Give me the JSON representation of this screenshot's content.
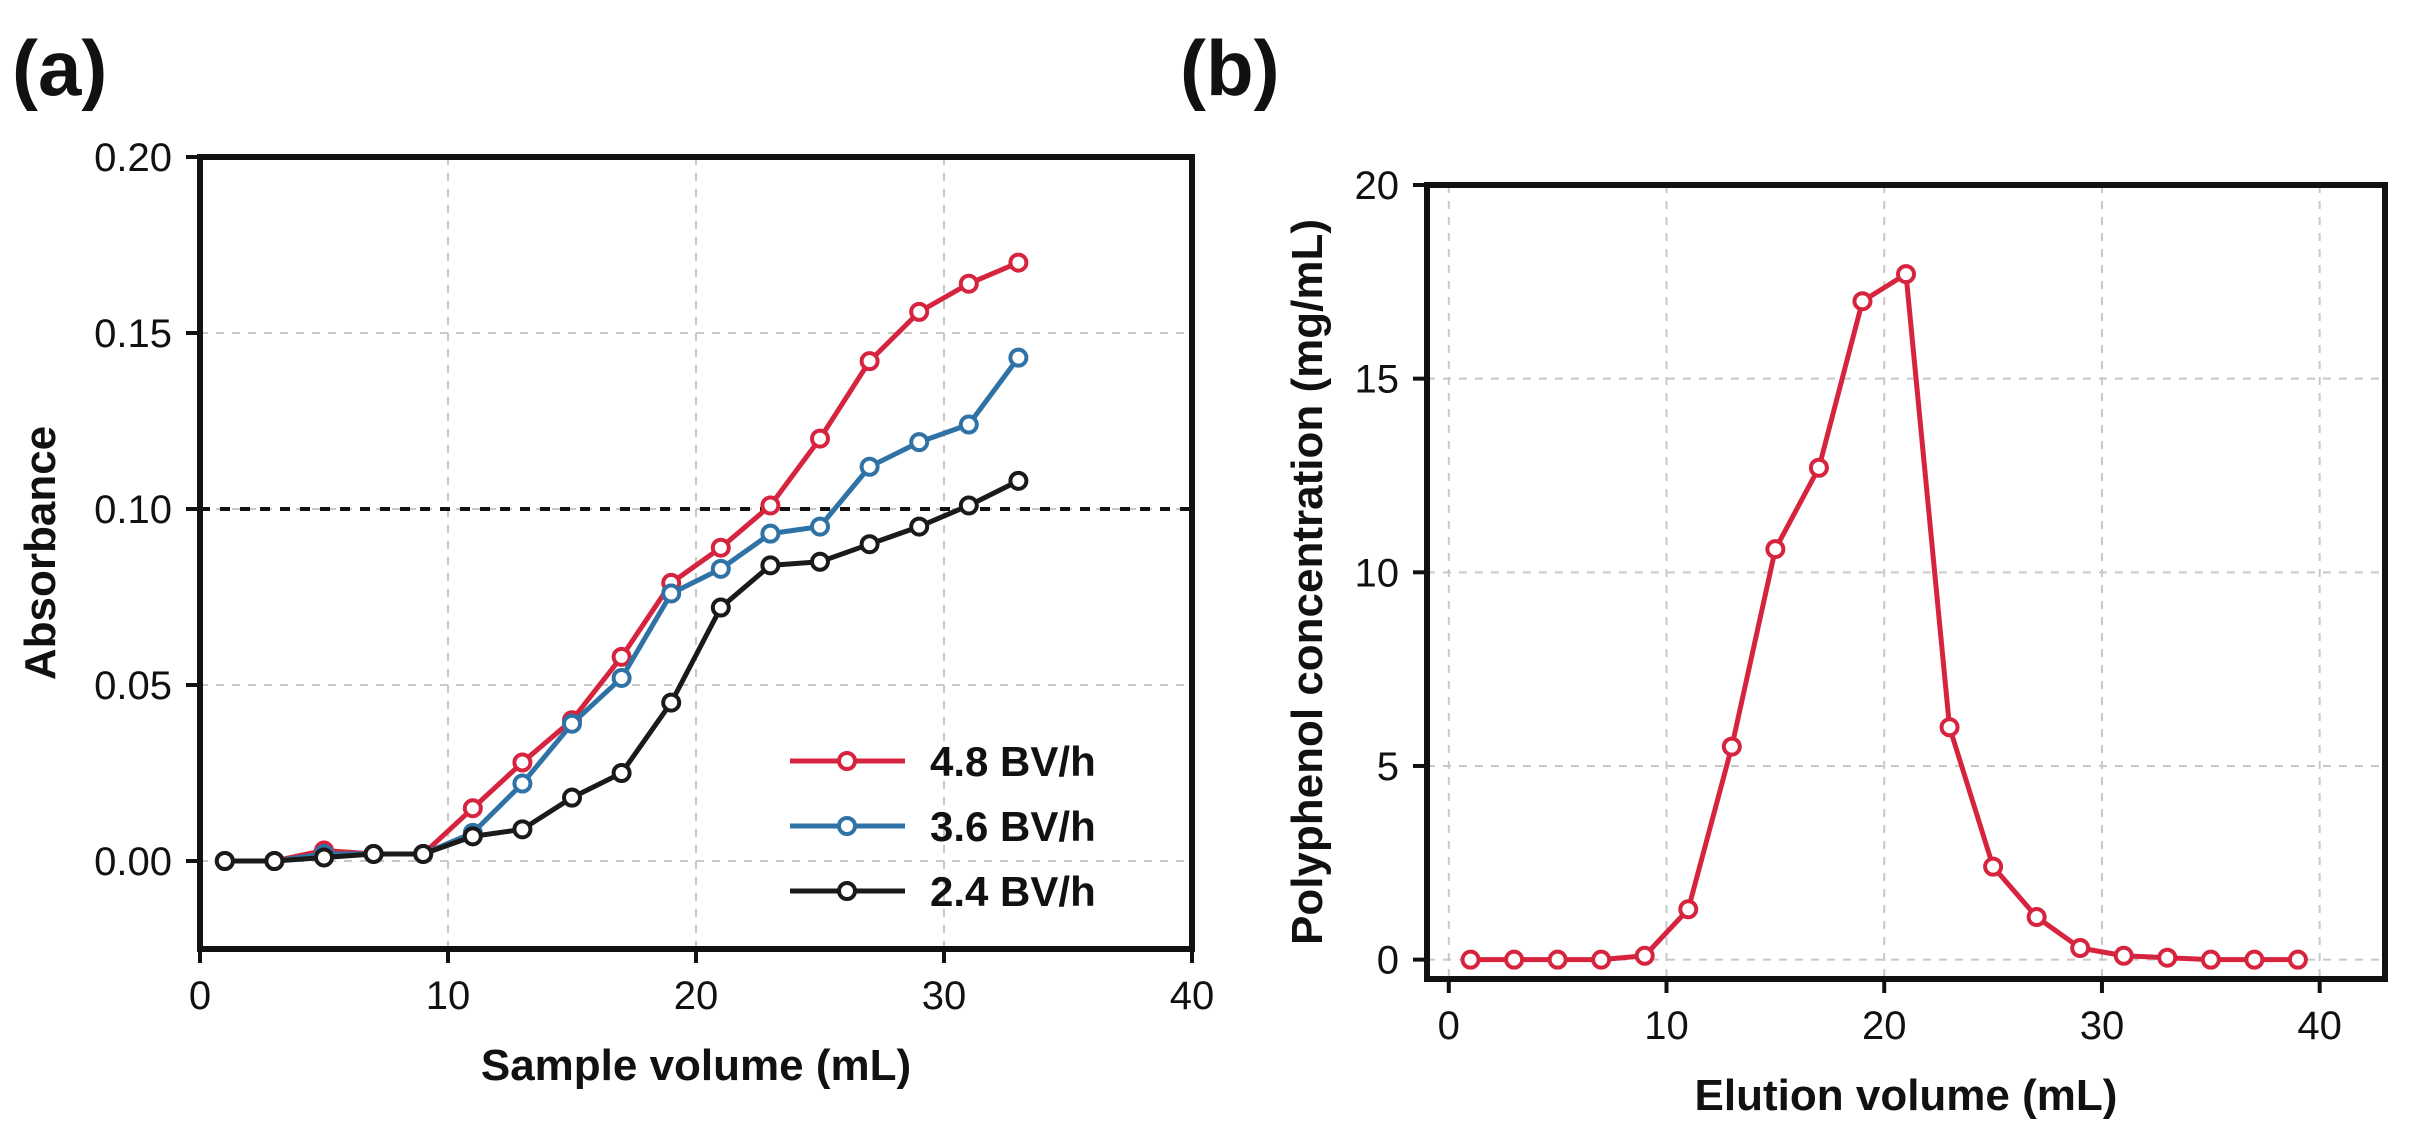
{
  "chart_data": [
    {
      "type": "line",
      "panel_label": "(a)",
      "xlabel": "Sample volume (mL)",
      "ylabel": "Absorbance",
      "xlim": [
        0,
        40
      ],
      "ylim": [
        -0.025,
        0.2
      ],
      "xticks": [
        0,
        10,
        20,
        30,
        40
      ],
      "yticks": [
        0.0,
        0.05,
        0.1,
        0.15,
        0.2
      ],
      "ytick_labels": [
        "0.00",
        "0.05",
        "0.10",
        "0.15",
        "0.20"
      ],
      "grid": true,
      "legend_position": "bottom-right",
      "reference_line": {
        "y": 0.1,
        "style": "dashed"
      },
      "x": [
        1,
        3,
        5,
        7,
        9,
        11,
        13,
        15,
        17,
        19,
        21,
        23,
        25,
        27,
        29,
        31,
        33
      ],
      "series": [
        {
          "name": "4.8 BV/h",
          "color": "#d6243f",
          "values": [
            0.0,
            0.0,
            0.003,
            0.002,
            0.002,
            0.015,
            0.028,
            0.04,
            0.058,
            0.079,
            0.089,
            0.101,
            0.12,
            0.142,
            0.156,
            0.164,
            0.17
          ]
        },
        {
          "name": "3.6 BV/h",
          "color": "#2f72a6",
          "values": [
            0.0,
            0.0,
            0.002,
            0.002,
            0.002,
            0.008,
            0.022,
            0.039,
            0.052,
            0.076,
            0.083,
            0.093,
            0.095,
            0.112,
            0.119,
            0.124,
            0.143
          ]
        },
        {
          "name": "2.4 BV/h",
          "color": "#1a1a1a",
          "values": [
            0.0,
            0.0,
            0.001,
            0.002,
            0.002,
            0.007,
            0.009,
            0.018,
            0.025,
            0.045,
            0.072,
            0.084,
            0.085,
            0.09,
            0.095,
            0.101,
            0.108
          ]
        }
      ]
    },
    {
      "type": "line",
      "panel_label": "(b)",
      "xlabel": "Elution volume (mL)",
      "ylabel": "Polyphenol concentration (mg/mL)",
      "xlim": [
        -1,
        43
      ],
      "ylim": [
        -0.5,
        20
      ],
      "xticks": [
        0,
        10,
        20,
        30,
        40
      ],
      "yticks": [
        0,
        5,
        10,
        15,
        20
      ],
      "ytick_labels": [
        "0",
        "5",
        "10",
        "15",
        "20"
      ],
      "grid": true,
      "x": [
        1,
        3,
        5,
        7,
        9,
        11,
        13,
        15,
        17,
        19,
        21,
        23,
        25,
        27,
        29,
        31,
        33,
        35,
        37,
        39
      ],
      "series": [
        {
          "name": "",
          "color": "#d6243f",
          "values": [
            0.0,
            0.0,
            0.0,
            0.0,
            0.1,
            1.3,
            5.5,
            10.6,
            12.7,
            17.0,
            17.7,
            6.0,
            2.4,
            1.1,
            0.3,
            0.1,
            0.05,
            0.0,
            0.0,
            0.0
          ]
        }
      ]
    }
  ]
}
